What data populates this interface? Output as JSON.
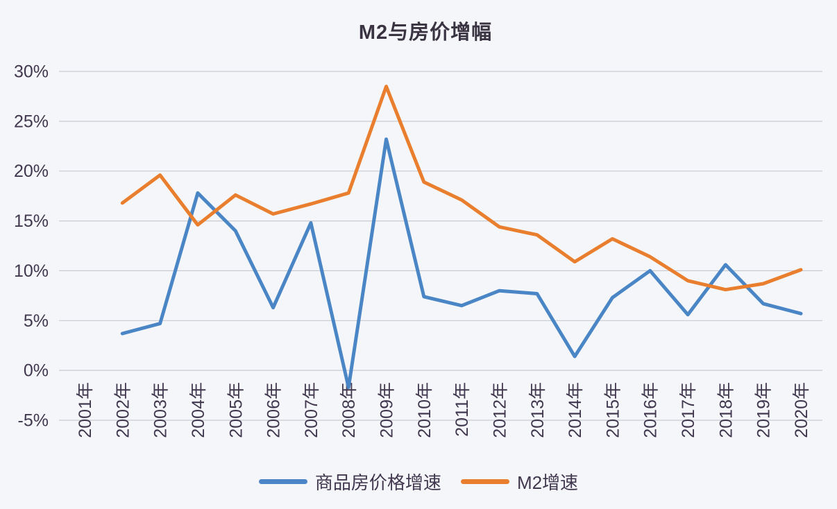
{
  "title": "M2与房价增幅",
  "colors": {
    "house_price_line": "#4a86c5",
    "m2_line": "#e97f2e",
    "grid": "#c8cbd2",
    "axis_text": "#41384f",
    "title_text": "#3a3442",
    "background": "#f5f6f9"
  },
  "chart_data": {
    "type": "line",
    "title": "M2与房价增幅",
    "categories": [
      "2001年",
      "2002年",
      "2003年",
      "2004年",
      "2005年",
      "2006年",
      "2007年",
      "2008年",
      "2009年",
      "2010年",
      "2011年",
      "2012年",
      "2013年",
      "2014年",
      "2015年",
      "2016年",
      "2017年",
      "2018年",
      "2019年",
      "2020年"
    ],
    "y_ticks": [
      {
        "label": "30%",
        "value": 30
      },
      {
        "label": "25%",
        "value": 25
      },
      {
        "label": "20%",
        "value": 20
      },
      {
        "label": "15%",
        "value": 15
      },
      {
        "label": "10%",
        "value": 10
      },
      {
        "label": "5%",
        "value": 5
      },
      {
        "label": "0%",
        "value": 0
      },
      {
        "label": "-5%",
        "value": -5
      }
    ],
    "ylim": [
      -5,
      30
    ],
    "unit": "%",
    "grid": true,
    "legend_position": "bottom",
    "series": [
      {
        "name": "商品房价格增速",
        "color": "#4a86c5",
        "values": [
          null,
          3.7,
          4.7,
          17.8,
          14.0,
          6.3,
          14.8,
          -1.7,
          23.2,
          7.4,
          6.5,
          8.0,
          7.7,
          1.4,
          7.3,
          10.0,
          5.6,
          10.6,
          6.7,
          5.7
        ]
      },
      {
        "name": "M2增速",
        "color": "#e97f2e",
        "values": [
          null,
          16.8,
          19.6,
          14.6,
          17.6,
          15.7,
          16.7,
          17.8,
          28.5,
          18.9,
          17.1,
          14.4,
          13.6,
          10.9,
          13.2,
          11.4,
          9.0,
          8.1,
          8.7,
          10.1
        ]
      }
    ]
  }
}
